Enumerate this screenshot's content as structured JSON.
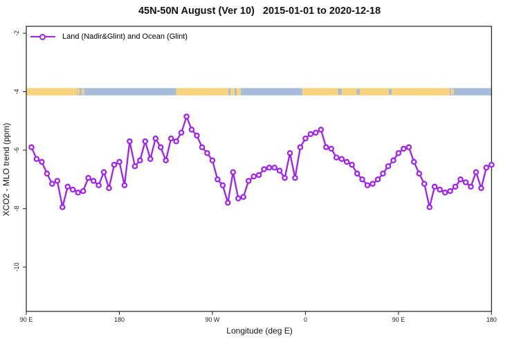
{
  "title": "45N-50N August (Ver 10)   2015-01-01 to 2020-12-18",
  "legend": {
    "label": "Land (Nadir&Glint) and Ocean (Glint)"
  },
  "axes": {
    "xlabel": "Longitude (deg E)",
    "ylabel": "XCO2 - MLO trend (ppm)",
    "x_ticks": [
      {
        "lng": 90,
        "label": "90 E"
      },
      {
        "lng": 180,
        "label": "180"
      },
      {
        "lng": 270,
        "label": "90 W"
      },
      {
        "lng": 360,
        "label": "0"
      },
      {
        "lng": 450,
        "label": "90 E"
      },
      {
        "lng": 540,
        "label": "180"
      }
    ],
    "y_ticks": [
      {
        "v": -2,
        "label": "-2"
      },
      {
        "v": -4,
        "label": "-4"
      },
      {
        "v": -6,
        "label": "-6"
      },
      {
        "v": -8,
        "label": "-8"
      },
      {
        "v": -10,
        "label": "-10"
      }
    ]
  },
  "colors": {
    "series": "#A020F0",
    "land": "#F9D47E",
    "ocean": "#A7BCDB",
    "axis": "#1a1a1a"
  },
  "chart_data": {
    "type": "line",
    "title": "45N-50N August (Ver 10)   2015-01-01 to 2020-12-18",
    "xlabel": "Longitude (deg E)",
    "ylabel": "XCO2 - MLO trend (ppm)",
    "x_axis_lng_range": [
      90,
      540
    ],
    "y_tick_values": [
      -2,
      -4,
      -6,
      -8,
      -10
    ],
    "grid": false,
    "legend_position": "top-left",
    "series": [
      {
        "name": "Land (Nadir&Glint) and Ocean (Glint)",
        "marker": "open-circle",
        "lon_start": 95,
        "lon_step": 5,
        "values": [
          -5.9,
          -6.3,
          -6.4,
          -6.8,
          -7.15,
          -7.05,
          -7.95,
          -7.25,
          -7.35,
          -7.45,
          -7.4,
          -6.95,
          -7.05,
          -7.2,
          -6.75,
          -7.3,
          -6.5,
          -6.4,
          -7.2,
          -5.7,
          -6.55,
          -6.35,
          -5.7,
          -6.3,
          -5.6,
          -5.9,
          -6.35,
          -5.6,
          -5.7,
          -5.4,
          -4.85,
          -5.3,
          -5.5,
          -5.9,
          -6.1,
          -6.35,
          -7.0,
          -7.2,
          -7.8,
          -6.75,
          -7.65,
          -7.6,
          -7.05,
          -6.9,
          -6.85,
          -6.65,
          -6.6,
          -6.6,
          -6.7,
          -6.95,
          -6.1,
          -6.95,
          -5.9,
          -5.6,
          -5.45,
          -5.4,
          -5.3,
          -5.9,
          -5.95,
          -6.25,
          -6.3,
          -6.4,
          -6.5,
          -6.8,
          -7.0,
          -7.2,
          -7.15,
          -7.0,
          -6.8,
          -6.55,
          -6.35,
          -6.1,
          -5.95,
          -5.9,
          -6.4,
          -6.8,
          -7.15,
          -7.95,
          -7.25,
          -7.35,
          -7.45,
          -7.4,
          -7.25,
          -7.0,
          -7.1,
          -7.25,
          -6.75,
          -7.3,
          -6.6,
          -6.5
        ]
      }
    ],
    "surface_band": {
      "description": "land/ocean surface-type strip drawn at y = -4",
      "y_center": -4,
      "land_color": "#F9D47E",
      "ocean_color": "#A7BCDB",
      "segments": [
        {
          "surface": "land",
          "from": 90,
          "to": 139
        },
        {
          "surface": "ocean",
          "from": 139,
          "to": 235
        },
        {
          "surface": "land",
          "from": 235,
          "to": 285.5
        },
        {
          "surface": "ocean",
          "from": 285.5,
          "to": 287.5
        },
        {
          "surface": "land",
          "from": 287.5,
          "to": 291.5
        },
        {
          "surface": "ocean",
          "from": 291.5,
          "to": 293.5
        },
        {
          "surface": "land",
          "from": 293.5,
          "to": 297.5
        },
        {
          "surface": "ocean",
          "from": 297.5,
          "to": 357
        },
        {
          "surface": "land",
          "from": 357,
          "to": 499.5
        },
        {
          "surface": "ocean",
          "from": 499.5,
          "to": 540
        }
      ],
      "specks": [
        {
          "surface": "land",
          "from": 139.5,
          "to": 141.5
        },
        {
          "surface": "land",
          "from": 143.5,
          "to": 146
        },
        {
          "surface": "ocean",
          "from": 391.5,
          "to": 395
        },
        {
          "surface": "ocean",
          "from": 409.5,
          "to": 412.5
        },
        {
          "surface": "ocean",
          "from": 440.5,
          "to": 443.5
        },
        {
          "surface": "land",
          "from": 500.5,
          "to": 503.5
        }
      ]
    }
  }
}
